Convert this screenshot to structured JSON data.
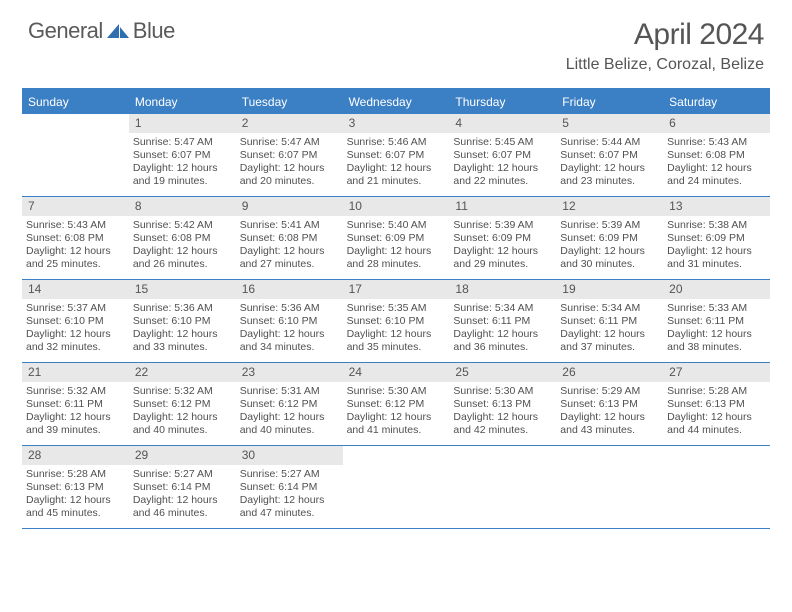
{
  "logo": {
    "text1": "General",
    "text2": "Blue"
  },
  "title": "April 2024",
  "location": "Little Belize, Corozal, Belize",
  "header_bg": "#3b7fc4",
  "day_headers": [
    "Sunday",
    "Monday",
    "Tuesday",
    "Wednesday",
    "Thursday",
    "Friday",
    "Saturday"
  ],
  "weeks": [
    [
      {
        "empty": true
      },
      {
        "n": "1",
        "sr": "Sunrise: 5:47 AM",
        "ss": "Sunset: 6:07 PM",
        "d1": "Daylight: 12 hours",
        "d2": "and 19 minutes."
      },
      {
        "n": "2",
        "sr": "Sunrise: 5:47 AM",
        "ss": "Sunset: 6:07 PM",
        "d1": "Daylight: 12 hours",
        "d2": "and 20 minutes."
      },
      {
        "n": "3",
        "sr": "Sunrise: 5:46 AM",
        "ss": "Sunset: 6:07 PM",
        "d1": "Daylight: 12 hours",
        "d2": "and 21 minutes."
      },
      {
        "n": "4",
        "sr": "Sunrise: 5:45 AM",
        "ss": "Sunset: 6:07 PM",
        "d1": "Daylight: 12 hours",
        "d2": "and 22 minutes."
      },
      {
        "n": "5",
        "sr": "Sunrise: 5:44 AM",
        "ss": "Sunset: 6:07 PM",
        "d1": "Daylight: 12 hours",
        "d2": "and 23 minutes."
      },
      {
        "n": "6",
        "sr": "Sunrise: 5:43 AM",
        "ss": "Sunset: 6:08 PM",
        "d1": "Daylight: 12 hours",
        "d2": "and 24 minutes."
      }
    ],
    [
      {
        "n": "7",
        "sr": "Sunrise: 5:43 AM",
        "ss": "Sunset: 6:08 PM",
        "d1": "Daylight: 12 hours",
        "d2": "and 25 minutes."
      },
      {
        "n": "8",
        "sr": "Sunrise: 5:42 AM",
        "ss": "Sunset: 6:08 PM",
        "d1": "Daylight: 12 hours",
        "d2": "and 26 minutes."
      },
      {
        "n": "9",
        "sr": "Sunrise: 5:41 AM",
        "ss": "Sunset: 6:08 PM",
        "d1": "Daylight: 12 hours",
        "d2": "and 27 minutes."
      },
      {
        "n": "10",
        "sr": "Sunrise: 5:40 AM",
        "ss": "Sunset: 6:09 PM",
        "d1": "Daylight: 12 hours",
        "d2": "and 28 minutes."
      },
      {
        "n": "11",
        "sr": "Sunrise: 5:39 AM",
        "ss": "Sunset: 6:09 PM",
        "d1": "Daylight: 12 hours",
        "d2": "and 29 minutes."
      },
      {
        "n": "12",
        "sr": "Sunrise: 5:39 AM",
        "ss": "Sunset: 6:09 PM",
        "d1": "Daylight: 12 hours",
        "d2": "and 30 minutes."
      },
      {
        "n": "13",
        "sr": "Sunrise: 5:38 AM",
        "ss": "Sunset: 6:09 PM",
        "d1": "Daylight: 12 hours",
        "d2": "and 31 minutes."
      }
    ],
    [
      {
        "n": "14",
        "sr": "Sunrise: 5:37 AM",
        "ss": "Sunset: 6:10 PM",
        "d1": "Daylight: 12 hours",
        "d2": "and 32 minutes."
      },
      {
        "n": "15",
        "sr": "Sunrise: 5:36 AM",
        "ss": "Sunset: 6:10 PM",
        "d1": "Daylight: 12 hours",
        "d2": "and 33 minutes."
      },
      {
        "n": "16",
        "sr": "Sunrise: 5:36 AM",
        "ss": "Sunset: 6:10 PM",
        "d1": "Daylight: 12 hours",
        "d2": "and 34 minutes."
      },
      {
        "n": "17",
        "sr": "Sunrise: 5:35 AM",
        "ss": "Sunset: 6:10 PM",
        "d1": "Daylight: 12 hours",
        "d2": "and 35 minutes."
      },
      {
        "n": "18",
        "sr": "Sunrise: 5:34 AM",
        "ss": "Sunset: 6:11 PM",
        "d1": "Daylight: 12 hours",
        "d2": "and 36 minutes."
      },
      {
        "n": "19",
        "sr": "Sunrise: 5:34 AM",
        "ss": "Sunset: 6:11 PM",
        "d1": "Daylight: 12 hours",
        "d2": "and 37 minutes."
      },
      {
        "n": "20",
        "sr": "Sunrise: 5:33 AM",
        "ss": "Sunset: 6:11 PM",
        "d1": "Daylight: 12 hours",
        "d2": "and 38 minutes."
      }
    ],
    [
      {
        "n": "21",
        "sr": "Sunrise: 5:32 AM",
        "ss": "Sunset: 6:11 PM",
        "d1": "Daylight: 12 hours",
        "d2": "and 39 minutes."
      },
      {
        "n": "22",
        "sr": "Sunrise: 5:32 AM",
        "ss": "Sunset: 6:12 PM",
        "d1": "Daylight: 12 hours",
        "d2": "and 40 minutes."
      },
      {
        "n": "23",
        "sr": "Sunrise: 5:31 AM",
        "ss": "Sunset: 6:12 PM",
        "d1": "Daylight: 12 hours",
        "d2": "and 40 minutes."
      },
      {
        "n": "24",
        "sr": "Sunrise: 5:30 AM",
        "ss": "Sunset: 6:12 PM",
        "d1": "Daylight: 12 hours",
        "d2": "and 41 minutes."
      },
      {
        "n": "25",
        "sr": "Sunrise: 5:30 AM",
        "ss": "Sunset: 6:13 PM",
        "d1": "Daylight: 12 hours",
        "d2": "and 42 minutes."
      },
      {
        "n": "26",
        "sr": "Sunrise: 5:29 AM",
        "ss": "Sunset: 6:13 PM",
        "d1": "Daylight: 12 hours",
        "d2": "and 43 minutes."
      },
      {
        "n": "27",
        "sr": "Sunrise: 5:28 AM",
        "ss": "Sunset: 6:13 PM",
        "d1": "Daylight: 12 hours",
        "d2": "and 44 minutes."
      }
    ],
    [
      {
        "n": "28",
        "sr": "Sunrise: 5:28 AM",
        "ss": "Sunset: 6:13 PM",
        "d1": "Daylight: 12 hours",
        "d2": "and 45 minutes."
      },
      {
        "n": "29",
        "sr": "Sunrise: 5:27 AM",
        "ss": "Sunset: 6:14 PM",
        "d1": "Daylight: 12 hours",
        "d2": "and 46 minutes."
      },
      {
        "n": "30",
        "sr": "Sunrise: 5:27 AM",
        "ss": "Sunset: 6:14 PM",
        "d1": "Daylight: 12 hours",
        "d2": "and 47 minutes."
      },
      {
        "empty": true
      },
      {
        "empty": true
      },
      {
        "empty": true
      },
      {
        "empty": true
      }
    ]
  ]
}
